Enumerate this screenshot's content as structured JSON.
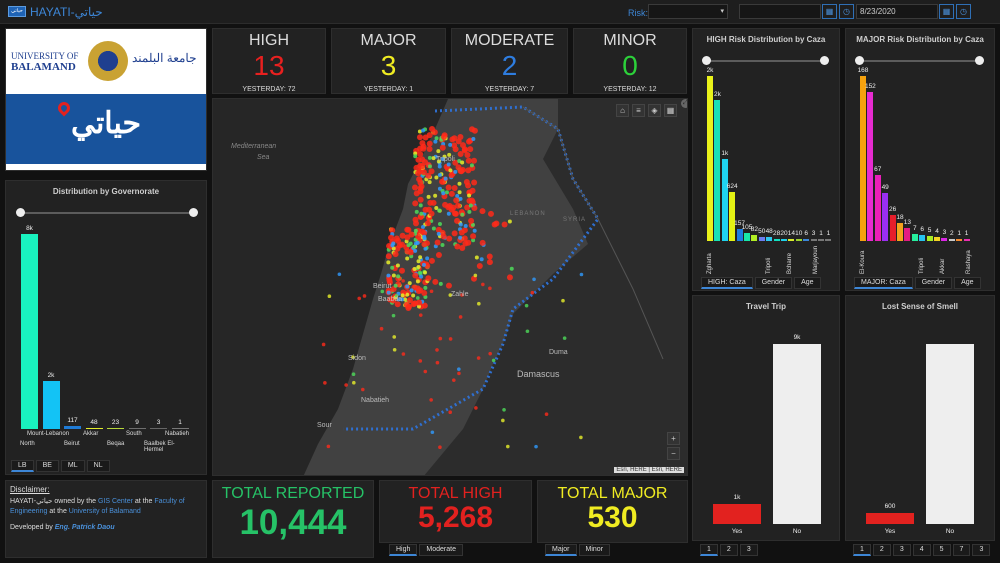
{
  "app": {
    "badge_text": "حياتي",
    "title": "HAYATI-حياتي"
  },
  "filters": {
    "risk_label": "Risk:",
    "date_value": "8/23/2020",
    "calendar_icon": "calendar-icon",
    "clock_icon": "clock-icon"
  },
  "university": {
    "name_line1": "UNIVERSITY OF",
    "name_line2": "BALAMAND",
    "arabic_name": "جامعة البلمند",
    "banner_text": "حياتي"
  },
  "severity": [
    {
      "title": "HIGH",
      "value": "13",
      "yesterday": "YESTERDAY: 72",
      "color": "#e8201f"
    },
    {
      "title": "MAJOR",
      "value": "3",
      "yesterday": "YESTERDAY: 1",
      "color": "#f0ec22"
    },
    {
      "title": "MODERATE",
      "value": "2",
      "yesterday": "YESTERDAY: 7",
      "color": "#2e7de0"
    },
    {
      "title": "MINOR",
      "value": "0",
      "yesterday": "YESTERDAY: 12",
      "color": "#2cd13a"
    }
  ],
  "governorate": {
    "title": "Distribution by Governorate",
    "bars": [
      {
        "value": 8000,
        "label": "8k",
        "color": "#19f2bf"
      },
      {
        "value": 1950,
        "label": "2k",
        "color": "#13c3f5"
      },
      {
        "value": 117,
        "label": "117",
        "color": "#1f7bd6"
      },
      {
        "value": 48,
        "label": "48",
        "color": "#e3ee2b"
      },
      {
        "value": 23,
        "label": "23",
        "color": "#b7d83a"
      },
      {
        "value": 9,
        "label": "9",
        "color": "#6e6e6e"
      },
      {
        "value": 3,
        "label": "3",
        "color": "#666"
      },
      {
        "value": 1,
        "label": "1",
        "color": "#777"
      }
    ],
    "row1": [
      "North",
      "Beirut",
      "Beqaa",
      "Baalbek El-Hermel"
    ],
    "row2": [
      "Mount-Lebanon",
      "Akkar",
      "South",
      "Nabatieh"
    ],
    "tabs": [
      "LB",
      "BE",
      "ML",
      "NL"
    ]
  },
  "disclaimer": {
    "heading": "Disclaimer:",
    "t1": "HAYATI-حياتي owned by the ",
    "gis": "GIS Center",
    "t2": " at the ",
    "faculty": "Faculty of Engineering",
    "t3": " at the ",
    "uob": "University of Balamand",
    "dev": "Developed by ",
    "dev_name": "Eng. Patrick Daou"
  },
  "map": {
    "places": [
      "Mediterranean",
      "Sea",
      "Tripoli",
      "Beirut",
      "Baabda",
      "Zahle",
      "Sidon",
      "Nabatieh",
      "Sour",
      "Duma",
      "Damascus",
      "LEBANON",
      "SYRIA"
    ],
    "attribution": "Esri, HERE | Esri, HERE",
    "zoom_in": "+",
    "zoom_out": "−"
  },
  "totals": [
    {
      "title": "TOTAL REPORTED",
      "value": "10,444",
      "title_color": "#26c267",
      "value_color": "#26c267"
    },
    {
      "title": "TOTAL HIGH",
      "value": "5,268",
      "title_color": "#e2211f",
      "value_color": "#e2211f"
    },
    {
      "title": "TOTAL MAJOR",
      "value": "530",
      "title_color": "#f0ec22",
      "value_color": "#f0ec22"
    }
  ],
  "total_tabs": {
    "high_tabs": [
      "High",
      "Moderate"
    ],
    "major_tabs": [
      "Major",
      "Minor"
    ]
  },
  "high_caza": {
    "title": "HIGH Risk Distribution by Caza",
    "bars": [
      {
        "value": 2100,
        "label": "2k",
        "color": "#eaf21a"
      },
      {
        "value": 1800,
        "label": "2k",
        "color": "#18e1b5"
      },
      {
        "value": 1050,
        "label": "1k",
        "color": "#1fd3f0"
      },
      {
        "value": 624,
        "label": "624",
        "color": "#e4f213"
      },
      {
        "value": 157,
        "label": "157",
        "color": "#1d7de0"
      },
      {
        "value": 105,
        "label": "105",
        "color": "#18e8a8"
      },
      {
        "value": 82,
        "label": "82",
        "color": "#b2ee23"
      },
      {
        "value": 50,
        "label": "50",
        "color": "#6b7cf0"
      },
      {
        "value": 48,
        "label": "48",
        "color": "#2ec7f0"
      },
      {
        "value": 28,
        "label": "28",
        "color": "#11e0c0"
      },
      {
        "value": 20,
        "label": "20",
        "color": "#20d1ec"
      },
      {
        "value": 14,
        "label": "14",
        "color": "#d8ec2b"
      },
      {
        "value": 10,
        "label": "10",
        "color": "#9ad12e"
      },
      {
        "value": 6,
        "label": "6",
        "color": "#3b86d9"
      },
      {
        "value": 3,
        "label": "3",
        "color": "#777"
      },
      {
        "value": 1,
        "label": "1",
        "color": "#777"
      },
      {
        "value": 1,
        "label": "1",
        "color": "#777"
      }
    ],
    "xlabels": [
      "Zgharta",
      "Tripoli",
      "Bcharre",
      "Marjayoun"
    ],
    "tabs": [
      "HIGH: Caza",
      "Gender",
      "Age"
    ]
  },
  "major_caza": {
    "title": "MAJOR Risk Distribution by Caza",
    "bars": [
      {
        "value": 168,
        "label": "168",
        "color": "#f5a20e"
      },
      {
        "value": 152,
        "label": "152",
        "color": "#e82bd1"
      },
      {
        "value": 67,
        "label": "67",
        "color": "#ea1fb8"
      },
      {
        "value": 49,
        "label": "49",
        "color": "#9a2ff2"
      },
      {
        "value": 26,
        "label": "26",
        "color": "#e61e2b"
      },
      {
        "value": 18,
        "label": "18",
        "color": "#f4a31c"
      },
      {
        "value": 13,
        "label": "13",
        "color": "#e31c84"
      },
      {
        "value": 7,
        "label": "7",
        "color": "#26ef9d"
      },
      {
        "value": 6,
        "label": "6",
        "color": "#26c2ef"
      },
      {
        "value": 5,
        "label": "5",
        "color": "#a6ec25"
      },
      {
        "value": 4,
        "label": "4",
        "color": "#f4d324"
      },
      {
        "value": 3,
        "label": "3",
        "color": "#dc26e6"
      },
      {
        "value": 2,
        "label": "2",
        "color": "#c8c8c8"
      },
      {
        "value": 1,
        "label": "1",
        "color": "#f58b2e"
      },
      {
        "value": 1,
        "label": "1",
        "color": "#eb2eb1"
      }
    ],
    "xlabels": [
      "El-Koura",
      "Tripoli",
      "Akkar",
      "Rashaya"
    ],
    "tabs": [
      "MAJOR: Caza",
      "Gender",
      "Age"
    ]
  },
  "travel": {
    "title": "Travel Trip",
    "bars": [
      {
        "label": "Yes",
        "value": 1000,
        "value_label": "1k",
        "color": "#e2221f"
      },
      {
        "label": "No",
        "value": 9000,
        "value_label": "9k",
        "color": "#eeeeee"
      }
    ],
    "pages": [
      "1",
      "2",
      "3"
    ]
  },
  "smell": {
    "title": "Lost Sense of Smell",
    "bars": [
      {
        "label": "Yes",
        "value": 600,
        "value_label": "600",
        "color": "#e2221f"
      },
      {
        "label": "No",
        "value": 9800,
        "value_label": "",
        "color": "#eeeeee"
      }
    ],
    "pages": [
      "1",
      "2",
      "3",
      "4",
      "5",
      "7",
      "3"
    ]
  }
}
